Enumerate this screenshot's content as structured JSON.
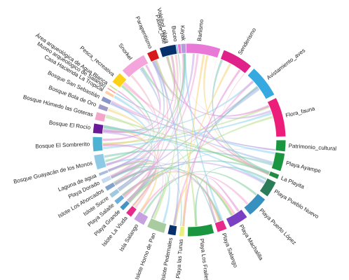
{
  "diagram": {
    "type": "chord",
    "nodes": [
      {
        "label": "Barlismo",
        "color": "#e879d6"
      },
      {
        "label": "Senderismo",
        "color": "#e0218a"
      },
      {
        "label": "Avistamiento_aves",
        "color": "#36a9e1"
      },
      {
        "label": "Flora_fauna",
        "color": "#ed1e79"
      },
      {
        "label": "Patrimonio_cultural",
        "color": "#1a9641"
      },
      {
        "label": "Playa Ayampe",
        "color": "#1a9641"
      },
      {
        "label": "La Playita",
        "color": "#238b45"
      },
      {
        "label": "Playa Pueblo Nuevo",
        "color": "#2c7c5a"
      },
      {
        "label": "Playa Puerto López",
        "color": "#3690c0"
      },
      {
        "label": "Playa Machalilla",
        "color": "#7b3fc4"
      },
      {
        "label": "Playa Salango",
        "color": "#e7298a"
      },
      {
        "label": "Playa Los Frailes",
        "color": "#1a9641"
      },
      {
        "label": "Playa las Tunas",
        "color": "#e6f07a"
      },
      {
        "label": "Islote Pedernales",
        "color": "#08306b"
      },
      {
        "label": "Islote Horno de Pan",
        "color": "#a8cba0"
      },
      {
        "label": "Isla Salango",
        "color": "#c7a0e0"
      },
      {
        "label": "Islote La Viuda",
        "color": "#e7298a"
      },
      {
        "label": "Playa Grande",
        "color": "#4393c3"
      },
      {
        "label": "Playa Salaite",
        "color": "#6baed6"
      },
      {
        "label": "Islote Sucre",
        "color": "#9ecae1"
      },
      {
        "label": "Islote Los Ahorcados",
        "color": "#7fa3c9"
      },
      {
        "label": "Playa Dorado",
        "color": "#c6dbef"
      },
      {
        "label": "Laguna de agua",
        "color": "#a6bddb"
      },
      {
        "label": "Bosque Guayacán de los Monos",
        "color": "#8ecae6"
      },
      {
        "label": "Bosque El Sombrerito",
        "color": "#4eb3d3"
      },
      {
        "label": "Bosque El Rocío",
        "color": "#6a1b9a"
      },
      {
        "label": "Bosque Húmedo las Goteras",
        "color": "#f4a6c8"
      },
      {
        "label": "Bosque Bola de Oro",
        "color": "#9e9ac8"
      },
      {
        "label": "Bosque San Sebastián",
        "color": "#8c96c6"
      },
      {
        "label": "Casa Hacienda La Tropical",
        "color": "#fdd0a2"
      },
      {
        "label": "Museo arqueológico de Salango",
        "color": "#fb9a99"
      },
      {
        "label": "Área arqueológica de Agua Blanca",
        "color": "#c6e27a"
      },
      {
        "label": "Pesca_recreativa",
        "color": "#fcd116"
      },
      {
        "label": "Snorkel",
        "color": "#f4a6dc"
      },
      {
        "label": "Parapentismo",
        "color": "#d7191c"
      },
      {
        "label": "Paseo_bote",
        "color": "#2b6cb0"
      },
      {
        "label": "Buceo",
        "color": "#7fb3e0"
      },
      {
        "label": "Kayak",
        "color": "#b39ddb"
      },
      {
        "label": "Voleibol_playa",
        "color": "#08306b"
      }
    ]
  }
}
